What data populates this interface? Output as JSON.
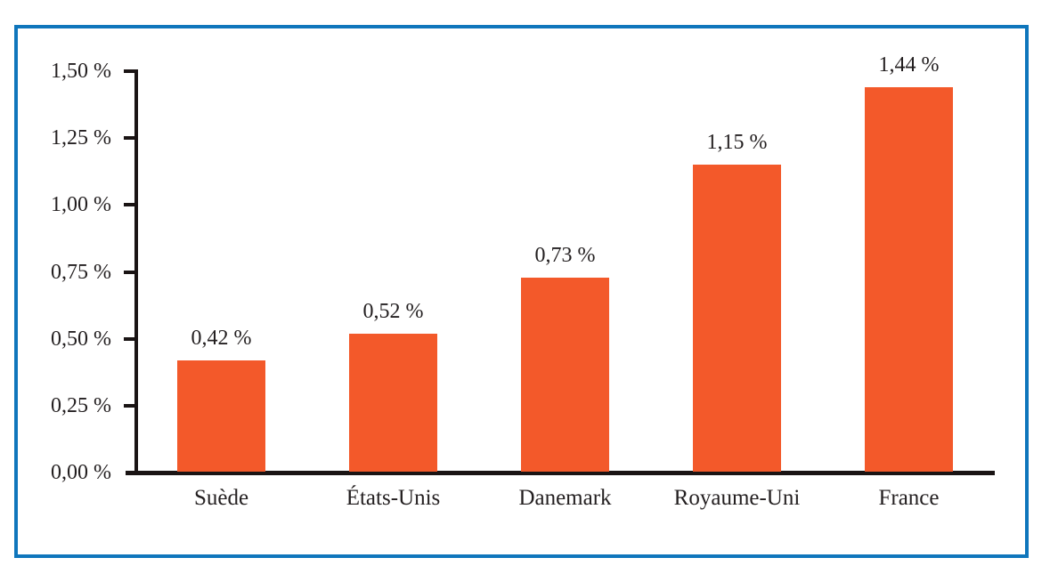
{
  "chart_data": {
    "type": "bar",
    "title": "",
    "xlabel": "",
    "ylabel": "",
    "categories": [
      "Suède",
      "États-Unis",
      "Danemark",
      "Royaume-Uni",
      "France"
    ],
    "values": [
      0.42,
      0.52,
      0.73,
      1.15,
      1.44
    ],
    "value_labels": [
      "0,42 %",
      "0,52 %",
      "0,73 %",
      "1,15 %",
      "1,44 %"
    ],
    "y_ticks": [
      0,
      0.25,
      0.5,
      0.75,
      1.0,
      1.25,
      1.5
    ],
    "y_tick_labels": [
      "0,00 %",
      "0,25 %",
      "0,50 %",
      "0,75 %",
      "1,00 %",
      "1,25 %",
      "1,50 %"
    ],
    "ylim": [
      0,
      1.5
    ],
    "grid": false,
    "legend": null,
    "colors": {
      "bar": "#F3592A",
      "frame": "#0F76BC",
      "axis": "#1A1414",
      "text": "#231F20",
      "background": "#FFFFFF"
    }
  }
}
